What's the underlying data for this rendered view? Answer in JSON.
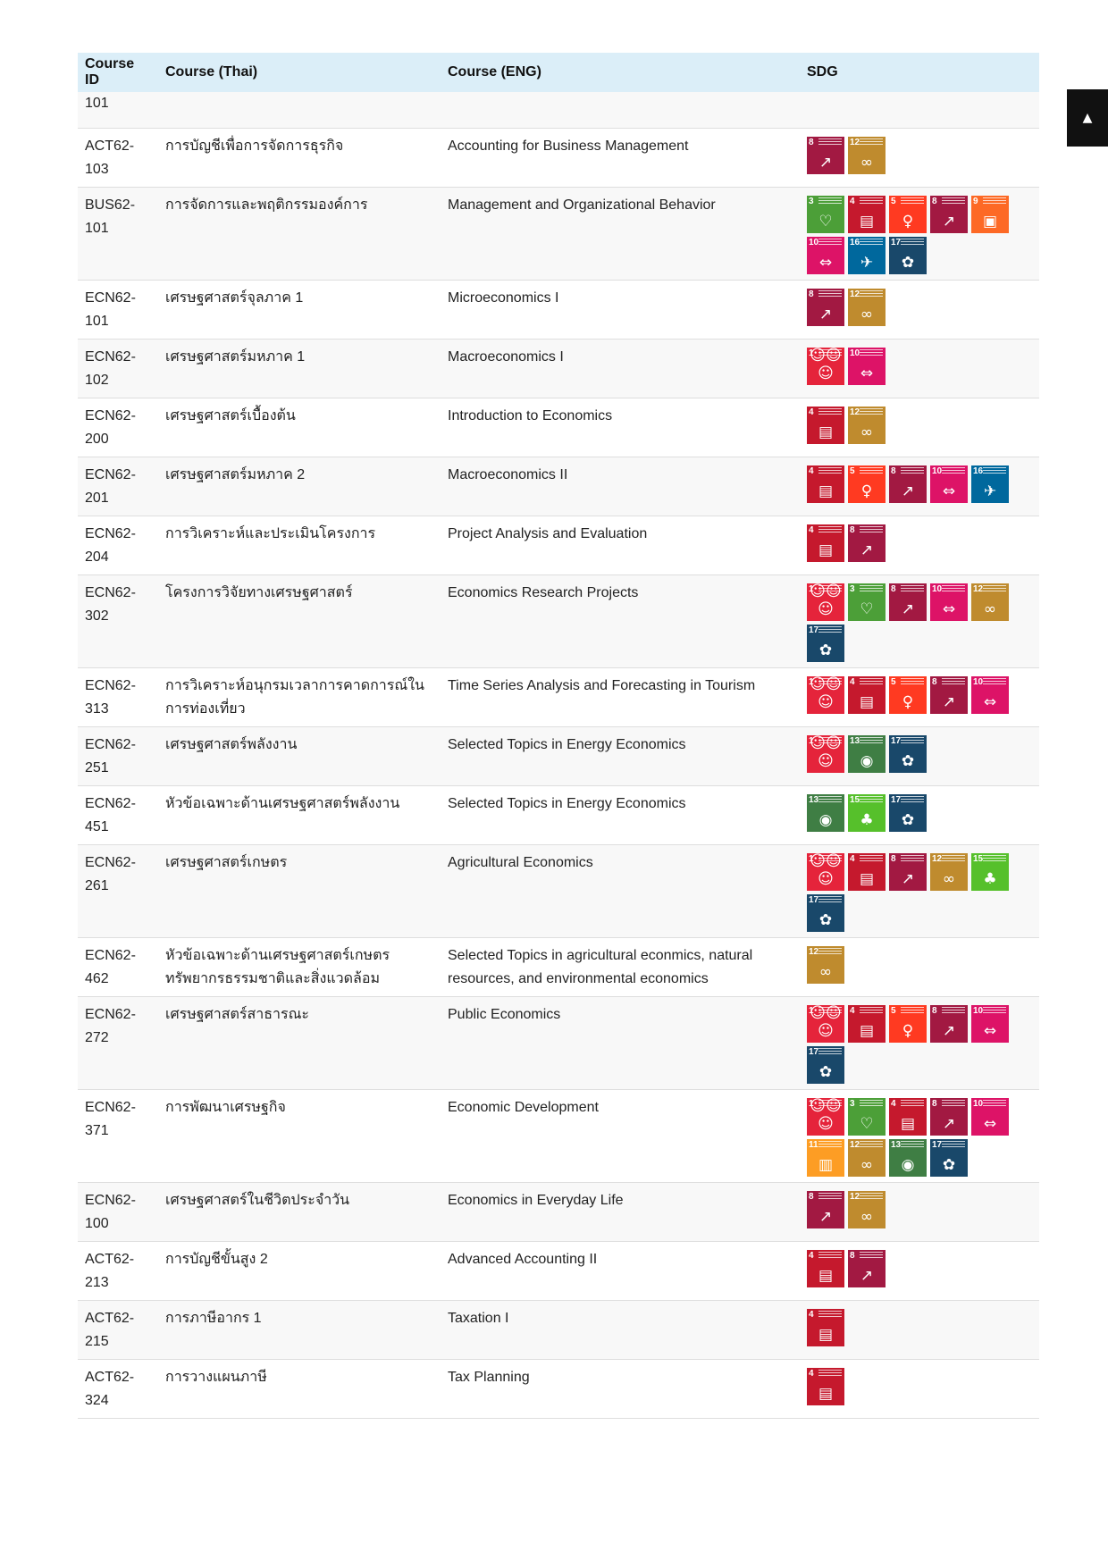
{
  "table": {
    "headers": [
      "Course ID",
      "Course (Thai)",
      "Course (ENG)",
      "SDG"
    ],
    "partial_row_id": "101",
    "rows": [
      {
        "id": "ACT62-103",
        "thai": "การบัญชีเพื่อการจัดการธุรกิจ",
        "eng": "Accounting for Business Management",
        "sdgs": [
          8,
          12
        ]
      },
      {
        "id": "BUS62-101",
        "thai": "การจัดการและพฤติกรรมองค์การ",
        "eng": "Management and Organizational Behavior",
        "sdgs": [
          3,
          4,
          5,
          8,
          9,
          10,
          16,
          17
        ]
      },
      {
        "id": "ECN62-101",
        "thai": "เศรษฐศาสตร์จุลภาค 1",
        "eng": "Microeconomics I",
        "sdgs": [
          8,
          12
        ]
      },
      {
        "id": "ECN62-102",
        "thai": "เศรษฐศาสตร์มหภาค 1",
        "eng": "Macroeconomics I",
        "sdgs": [
          1,
          10
        ]
      },
      {
        "id": "ECN62-200",
        "thai": "เศรษฐศาสตร์เบื้องต้น",
        "eng": "Introduction to Economics",
        "sdgs": [
          4,
          12
        ]
      },
      {
        "id": "ECN62-201",
        "thai": "เศรษฐศาสตร์มหภาค 2",
        "eng": "Macroeconomics II",
        "sdgs": [
          4,
          5,
          8,
          10,
          16
        ]
      },
      {
        "id": "ECN62-204",
        "thai": "การวิเคราะห์และประเมินโครงการ",
        "eng": "Project Analysis and Evaluation",
        "sdgs": [
          4,
          8
        ]
      },
      {
        "id": "ECN62-302",
        "thai": "โครงการวิจัยทางเศรษฐศาสตร์",
        "eng": "Economics Research Projects",
        "sdgs": [
          1,
          3,
          8,
          10,
          12,
          17
        ]
      },
      {
        "id": "ECN62-313",
        "thai": "การวิเคราะห์อนุกรมเวลาการคาดการณ์ในการท่องเที่ยว",
        "eng": "Time Series Analysis and Forecasting in Tourism",
        "sdgs": [
          1,
          4,
          5,
          8,
          10
        ]
      },
      {
        "id": "ECN62-251",
        "thai": "เศรษฐศาสตร์พลังงาน",
        "eng": "Selected Topics in Energy Economics",
        "sdgs": [
          1,
          13,
          17
        ]
      },
      {
        "id": "ECN62-451",
        "thai": "หัวข้อเฉพาะด้านเศรษฐศาสตร์พลังงาน",
        "eng": "Selected Topics in Energy Economics",
        "sdgs": [
          13,
          15,
          17
        ]
      },
      {
        "id": "ECN62-261",
        "thai": "เศรษฐศาสตร์เกษตร",
        "eng": "Agricultural Economics",
        "sdgs": [
          1,
          4,
          8,
          12,
          15,
          17
        ]
      },
      {
        "id": "ECN62-462",
        "thai": "หัวข้อเฉพาะด้านเศรษฐศาสตร์เกษตร ทรัพยากรธรรมชาติและสิ่งแวดล้อม",
        "eng": "Selected Topics in agricultural econmics, natural resources, and environmental economics",
        "sdgs": [
          12
        ]
      },
      {
        "id": "ECN62-272",
        "thai": "เศรษฐศาสตร์สาธารณะ",
        "eng": "Public Economics",
        "sdgs": [
          1,
          4,
          5,
          8,
          10,
          17
        ]
      },
      {
        "id": "ECN62-371",
        "thai": "การพัฒนาเศรษฐกิจ",
        "eng": "Economic Development",
        "sdgs": [
          1,
          3,
          4,
          8,
          10,
          11,
          12,
          13,
          17
        ]
      },
      {
        "id": "ECN62-100",
        "thai": "เศรษฐศาสตร์ในชีวิตประจำวัน",
        "eng": "Economics in Everyday Life",
        "sdgs": [
          8,
          12
        ]
      },
      {
        "id": "ACT62-213",
        "thai": "การบัญชีขั้นสูง 2",
        "eng": "Advanced Accounting II",
        "sdgs": [
          4,
          8
        ]
      },
      {
        "id": "ACT62-215",
        "thai": "การภาษีอากร 1",
        "eng": "Taxation I",
        "sdgs": [
          4
        ]
      },
      {
        "id": "ACT62-324",
        "thai": "การวางแผนภาษี",
        "eng": "Tax Planning",
        "sdgs": [
          4
        ]
      }
    ]
  },
  "sdg_icons": {
    "1": {
      "color": "#e5243b",
      "icon": "family-icon"
    },
    "3": {
      "color": "#4c9f38",
      "icon": "heartbeat-icon"
    },
    "4": {
      "color": "#c5192d",
      "icon": "book-icon"
    },
    "5": {
      "color": "#ff3a21",
      "icon": "gender-icon"
    },
    "8": {
      "color": "#a21942",
      "icon": "growth-chart-icon"
    },
    "9": {
      "color": "#fd6925",
      "icon": "cubes-icon"
    },
    "10": {
      "color": "#dd1367",
      "icon": "equality-arrows-icon"
    },
    "11": {
      "color": "#fd9d24",
      "icon": "city-icon"
    },
    "12": {
      "color": "#bf8b2e",
      "icon": "infinity-icon"
    },
    "13": {
      "color": "#3f7e44",
      "icon": "eye-globe-icon"
    },
    "15": {
      "color": "#56c02b",
      "icon": "tree-icon"
    },
    "16": {
      "color": "#00689d",
      "icon": "dove-icon"
    },
    "17": {
      "color": "#19486a",
      "icon": "flower-icon"
    }
  },
  "scroll_top_icon": "chevron-up-icon"
}
